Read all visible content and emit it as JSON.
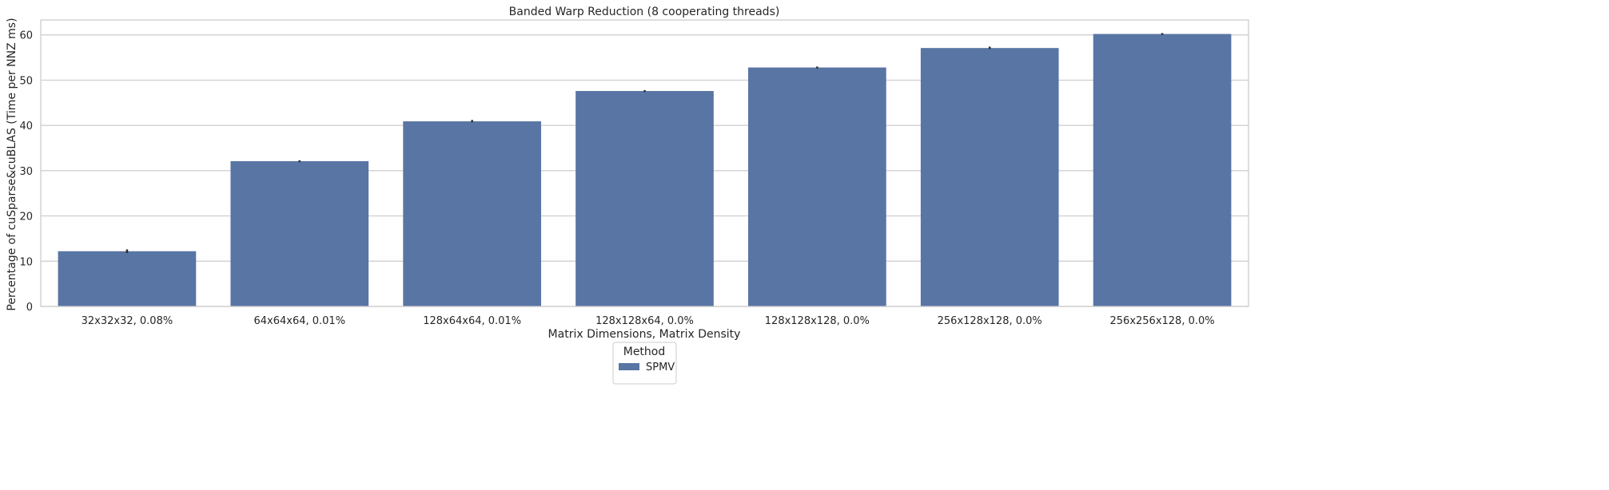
{
  "colors": {
    "bar": "#5975a4",
    "grid": "#cccccc",
    "frame": "#cccccc",
    "errorbar": "#2d2d2d",
    "text": "#262626"
  },
  "chart_data": {
    "type": "bar",
    "title": "Banded Warp Reduction (8 cooperating threads)",
    "xlabel": "Matrix Dimensions, Matrix Density",
    "ylabel": "Percentage of cuSparse&cuBLAS (Time per NNZ ms)",
    "categories": [
      "32x32x32, 0.08%",
      "64x64x64, 0.01%",
      "128x64x64, 0.01%",
      "128x128x64, 0.0%",
      "128x128x128, 0.0%",
      "256x128x128, 0.0%",
      "256x256x128, 0.0%"
    ],
    "series": [
      {
        "name": "SPMV",
        "values": [
          12.2,
          32.1,
          40.9,
          47.6,
          52.8,
          57.1,
          60.2
        ],
        "error_low": [
          11.8,
          31.9,
          40.7,
          47.4,
          52.6,
          56.9,
          60.0
        ],
        "error_high": [
          12.6,
          32.3,
          41.2,
          47.8,
          53.0,
          57.4,
          60.4
        ]
      }
    ],
    "ylim": [
      0,
      63.3
    ],
    "yticks": [
      0,
      10,
      20,
      30,
      40,
      50,
      60
    ],
    "grid": true,
    "legend": {
      "title": "Method",
      "placement": "bottom-center, outside plot"
    }
  }
}
